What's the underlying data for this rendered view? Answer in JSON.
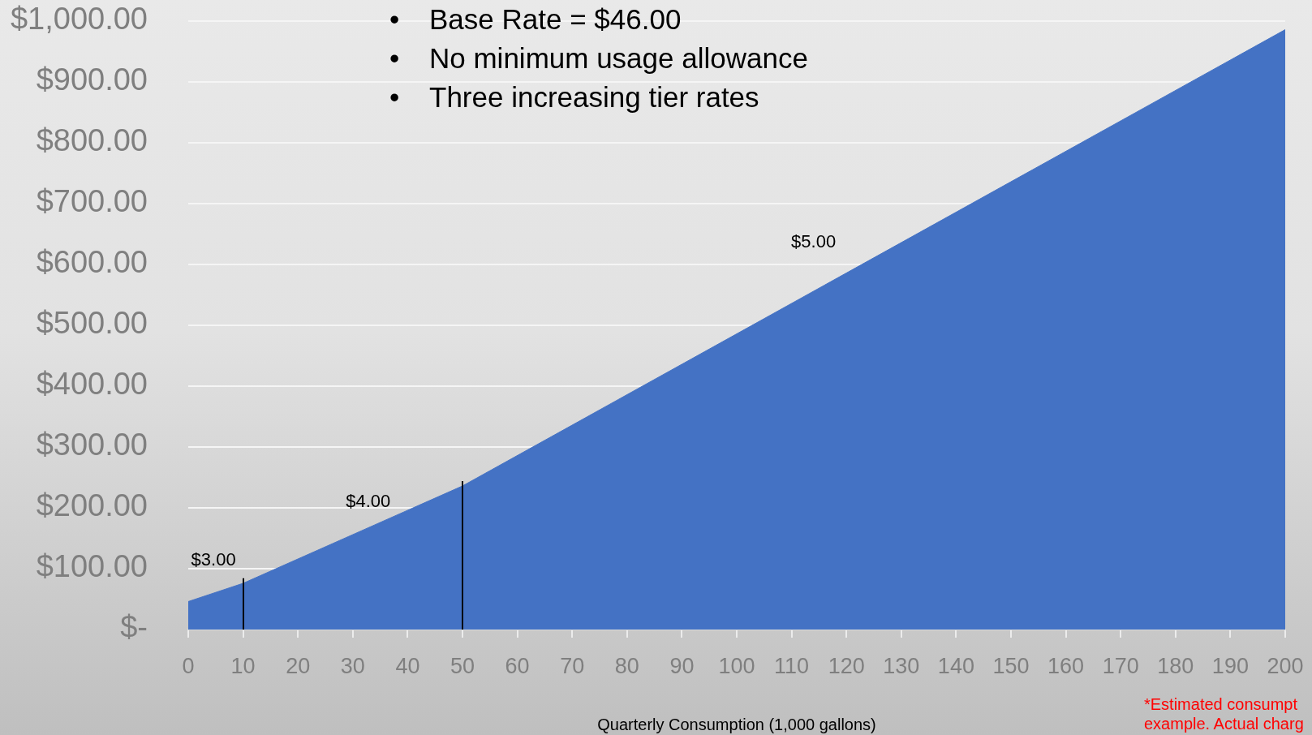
{
  "chart_data": {
    "type": "area",
    "xlabel": "Quarterly Consumption (1,000 gallons)",
    "x": [
      0,
      10,
      50,
      200
    ],
    "values": [
      46,
      76,
      236,
      986
    ],
    "color": "#4472c4",
    "xlim": [
      0,
      200
    ],
    "xticks": [
      0,
      10,
      20,
      30,
      40,
      50,
      60,
      70,
      80,
      90,
      100,
      110,
      120,
      130,
      140,
      150,
      160,
      170,
      180,
      190,
      200
    ],
    "ylim": [
      0,
      1000
    ],
    "yticks": [
      {
        "value": 0,
        "label": "$-"
      },
      {
        "value": 100,
        "label": "$100.00"
      },
      {
        "value": 200,
        "label": "$200.00"
      },
      {
        "value": 300,
        "label": "$300.00"
      },
      {
        "value": 400,
        "label": "$400.00"
      },
      {
        "value": 500,
        "label": "$500.00"
      },
      {
        "value": 600,
        "label": "$600.00"
      },
      {
        "value": 700,
        "label": "$700.00"
      },
      {
        "value": 800,
        "label": "$800.00"
      },
      {
        "value": 900,
        "label": "$900.00"
      },
      {
        "value": 1000,
        "label": "$1,000.00"
      }
    ],
    "grid": "y",
    "legend": false,
    "marker": "none",
    "ref_lines": [
      {
        "axis": "x",
        "value": 10,
        "color": "#000000"
      },
      {
        "axis": "x",
        "value": 50,
        "color": "#000000"
      }
    ],
    "annotations": [
      "•\tBase Rate = $46.00",
      "•\tNo minimum usage allowance",
      "•\tThree increasing tier rates",
      "$3.00",
      "$4.00",
      "$5.00",
      "*Estimated consumpt\nexample. Actual charg"
    ]
  }
}
